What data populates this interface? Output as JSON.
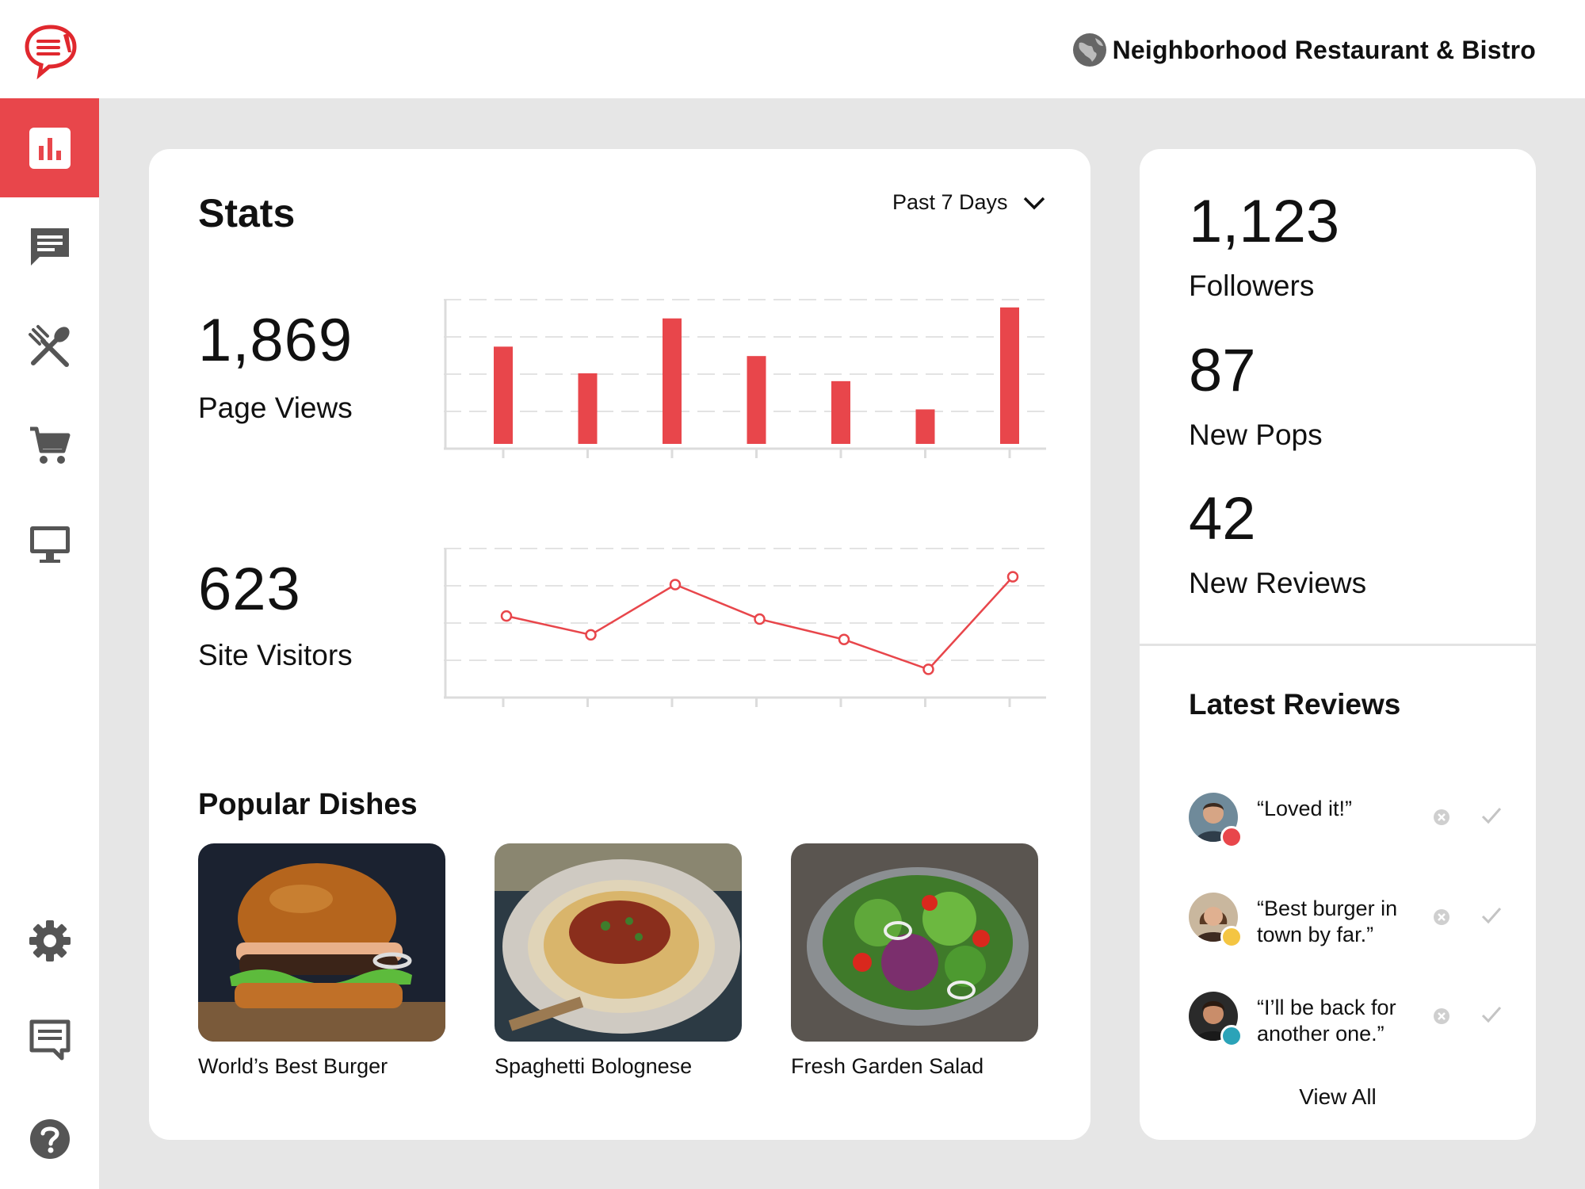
{
  "header": {
    "restaurant_name": "Neighborhood Restaurant & Bistro",
    "logo_icon": "chat-menu-logo-icon",
    "globe_icon": "globe-icon"
  },
  "sidebar": {
    "items": [
      {
        "icon": "bar-chart-icon",
        "active": true
      },
      {
        "icon": "message-icon",
        "active": false
      },
      {
        "icon": "utensils-icon",
        "active": false
      },
      {
        "icon": "cart-icon",
        "active": false
      },
      {
        "icon": "monitor-icon",
        "active": false
      },
      {
        "icon": "gear-icon",
        "active": false
      },
      {
        "icon": "feedback-icon",
        "active": false
      },
      {
        "icon": "help-icon",
        "active": false
      }
    ]
  },
  "stats": {
    "title": "Stats",
    "range_label": "Past 7 Days",
    "page_views": {
      "value": "1,869",
      "label": "Page Views"
    },
    "site_visitors": {
      "value": "623",
      "label": "Site Visitors"
    }
  },
  "chart_data": [
    {
      "type": "bar",
      "title": "",
      "categories": [
        "",
        "",
        "",
        "",
        "",
        "",
        ""
      ],
      "values": [
        62,
        45,
        80,
        56,
        40,
        22,
        87
      ],
      "ylim": [
        0,
        95
      ],
      "grid": true,
      "color": "#e8464b"
    },
    {
      "type": "line",
      "title": "",
      "x": [
        1,
        2,
        3,
        4,
        5,
        6,
        7
      ],
      "values": [
        52,
        40,
        72,
        50,
        37,
        18,
        77
      ],
      "ylim": [
        0,
        95
      ],
      "grid": true,
      "color": "#e8464b"
    }
  ],
  "popular_dishes": {
    "title": "Popular Dishes",
    "items": [
      {
        "name": "World’s Best Burger"
      },
      {
        "name": "Spaghetti Bolognese"
      },
      {
        "name": "Fresh Garden Salad"
      }
    ]
  },
  "metrics": [
    {
      "value": "1,123",
      "label": "Followers"
    },
    {
      "value": "87",
      "label": "New Pops"
    },
    {
      "value": "42",
      "label": "New Reviews"
    }
  ],
  "reviews": {
    "title": "Latest Reviews",
    "items": [
      {
        "quote": "“Loved it!”",
        "badge_color": "#e8464b",
        "badge_icon": "heart-icon"
      },
      {
        "quote": "“Best burger in town by far.”",
        "badge_color": "#f4c542",
        "badge_icon": "thumbs-up-icon"
      },
      {
        "quote": "“I’ll be back for another one.”",
        "badge_color": "#2ba3b8",
        "badge_icon": "calendar-icon"
      }
    ],
    "view_all": "View All"
  },
  "colors": {
    "accent": "#e8464b",
    "icon_gray": "#555555",
    "background": "#e6e6e6"
  }
}
